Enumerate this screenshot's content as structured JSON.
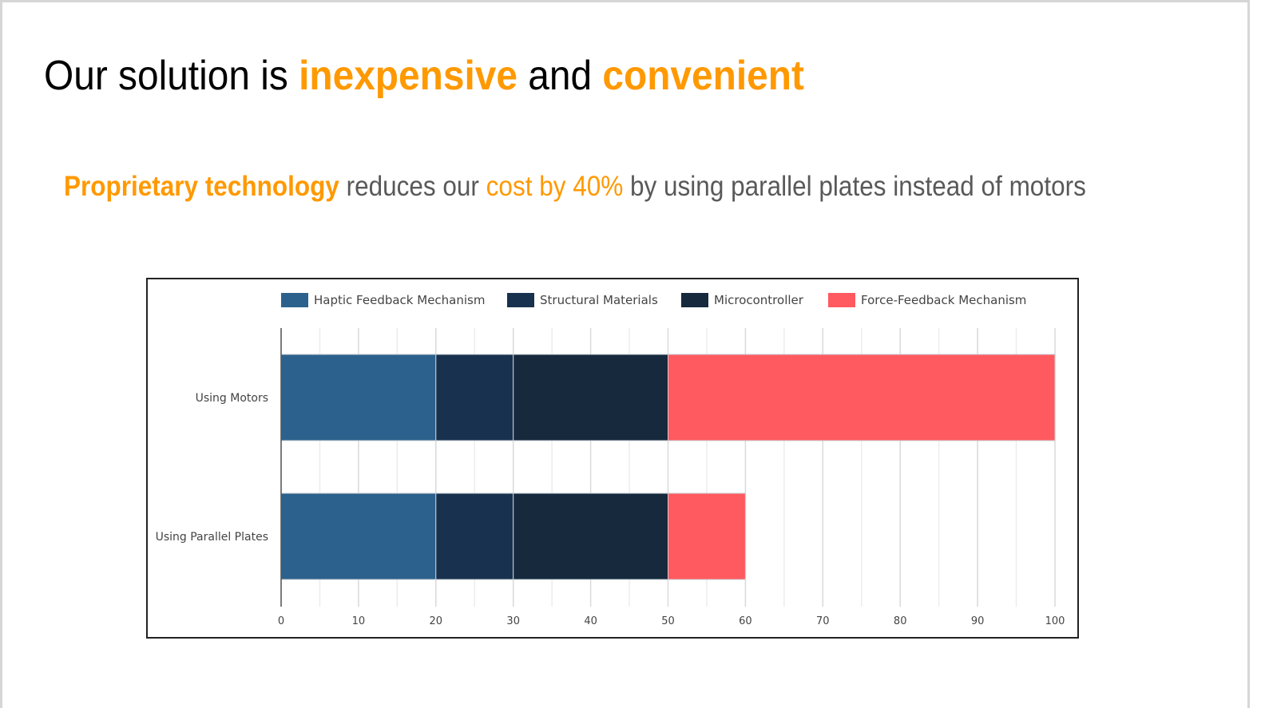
{
  "slide": {
    "title": {
      "parts": [
        {
          "text": "Our solution is ",
          "highlight": false
        },
        {
          "text": "inexpensive",
          "highlight": true
        },
        {
          "text": " and ",
          "highlight": false
        },
        {
          "text": "convenient",
          "highlight": true
        }
      ]
    },
    "subtitle": {
      "parts": [
        {
          "text": "Proprietary technology",
          "style": "bold-accent"
        },
        {
          "text": " reduces our ",
          "style": "normal"
        },
        {
          "text": "cost by 40%",
          "style": "accent"
        },
        {
          "text": " by using parallel plates instead of motors",
          "style": "normal"
        }
      ]
    },
    "colors": {
      "accent": "#ff9900",
      "body_text": "#595959",
      "title_text": "#000000"
    }
  },
  "chart_data": {
    "type": "bar",
    "orientation": "horizontal",
    "stacked": true,
    "title": "",
    "xlabel": "",
    "ylabel": "",
    "categories": [
      "Using Motors",
      "Using Parallel Plates"
    ],
    "series": [
      {
        "name": "Haptic Feedback Mechanism",
        "color": "#2c618d",
        "values": [
          20,
          20
        ]
      },
      {
        "name": "Structural Materials",
        "color": "#18314e",
        "values": [
          10,
          10
        ]
      },
      {
        "name": "Microcontroller",
        "color": "#16293d",
        "values": [
          20,
          20
        ]
      },
      {
        "name": "Force-Feedback Mechanism",
        "color": "#ff5a5f",
        "values": [
          50,
          10
        ]
      }
    ],
    "xlim": [
      0,
      100
    ],
    "xticks": [
      0,
      10,
      20,
      30,
      40,
      50,
      60,
      70,
      80,
      90,
      100
    ],
    "grid": true,
    "legend": "top"
  }
}
